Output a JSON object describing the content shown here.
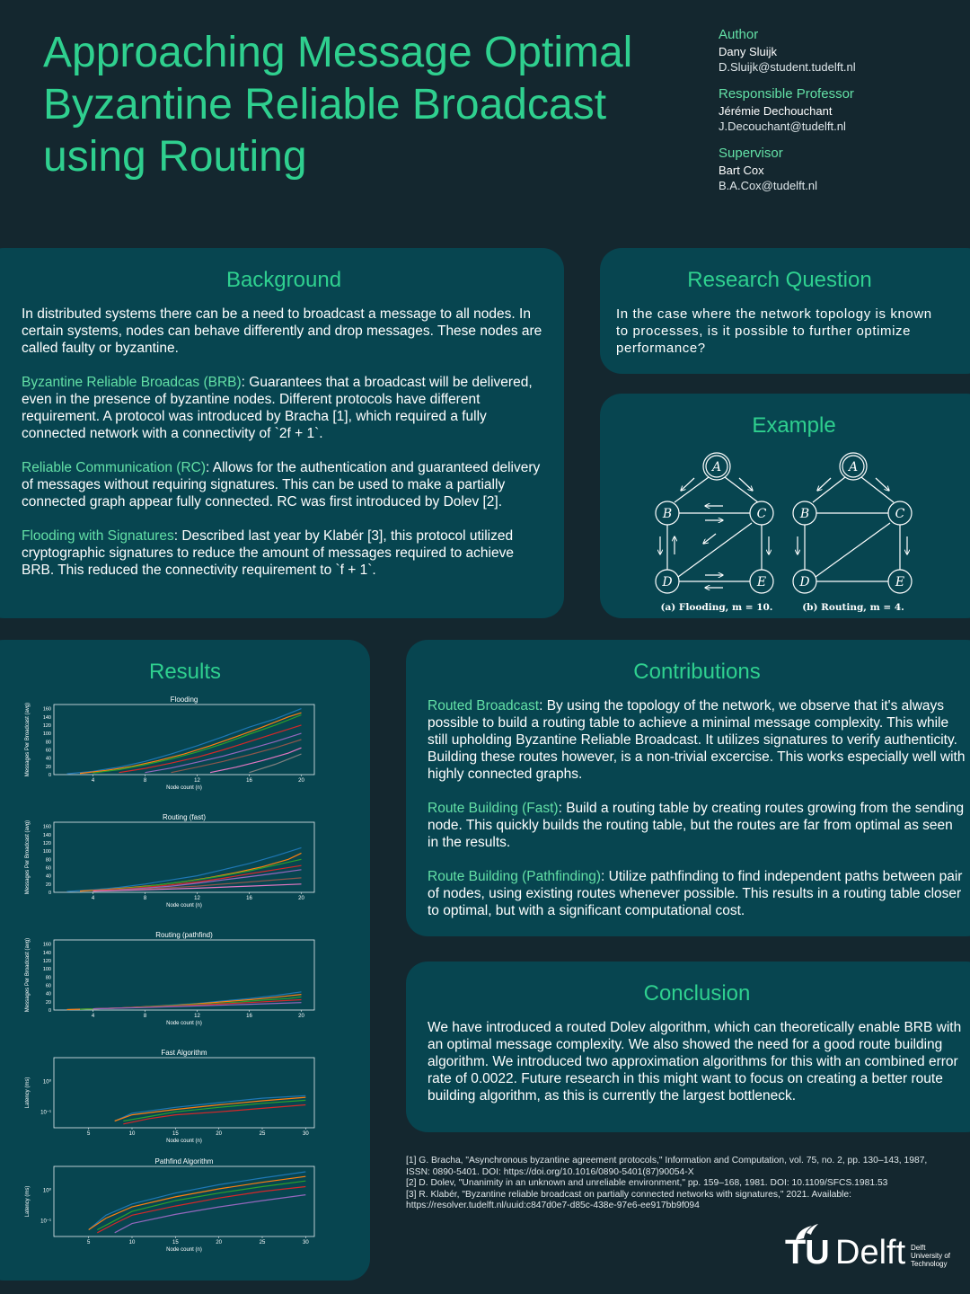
{
  "poster": {
    "title_lines": [
      "Approaching Message Optimal",
      "Byzantine Reliable Broadcast",
      "using Routing"
    ]
  },
  "credits": {
    "author_label": "Author",
    "author_name": "Dany Sluijk",
    "author_email": "D.Sluijk@student.tudelft.nl",
    "professor_label": "Responsible Professor",
    "professor_name": "Jérémie Dechouchant",
    "professor_email": "J.Decouchant@tudelft.nl",
    "supervisor_label": "Supervisor",
    "supervisor_name": "Bart Cox",
    "supervisor_email": "B.A.Cox@tudelft.nl"
  },
  "background": {
    "heading": "Background",
    "intro": "In distributed systems there can be a need to broadcast a message to all nodes. In certain systems, nodes can behave differently and drop messages. These nodes are called faulty or byzantine.",
    "brb_term": "Byzantine Reliable Broadcas (BRB)",
    "brb_text": ": Guarantees that a broadcast will be delivered, even in the presence of byzantine nodes. Different protocols have different requirement. A protocol was introduced by Bracha [1], which required a fully connected network with a connectivity of `2f + 1`.",
    "rc_term": "Reliable Communication (RC)",
    "rc_text": ": Allows for the authentication and guaranteed delivery of messages without requiring signatures. This can be used to make a partially connected graph appear fully connected. RC was first introduced by Dolev [2].",
    "fws_term": "Flooding with Signatures",
    "fws_text": ": Described last year by Klabér [3], this protocol utilized cryptographic signatures to reduce the amount of messages required to achieve BRB. This reduced the connectivity requirement to `f + 1`."
  },
  "research_question": {
    "heading": "Research Question",
    "text": "In the case where the network topology is known to processes, is it possible to further optimize performance?"
  },
  "example": {
    "heading": "Example",
    "nodes": [
      "A",
      "B",
      "C",
      "D",
      "E"
    ],
    "caption_a": "(a) Flooding, m = 10.",
    "caption_b": "(b) Routing, m = 4."
  },
  "results": {
    "heading": "Results"
  },
  "contributions": {
    "heading": "Contributions",
    "routed_term": "Routed Broadcast",
    "routed_text": ": By using the topology of the network, we observe that it's always possible to build a routing table to achieve a minimal message complexity. This while still upholding Byzantine Reliable Broadcast. It utilizes signatures to verify authenticity. Building these routes however, is a non-trivial excercise. This works especially well with highly connected graphs.",
    "fast_term": "Route Building (Fast)",
    "fast_text": ": Build a routing table by creating routes growing from the sending node. This quickly builds the routing table, but the routes are far from optimal as seen in the results.",
    "path_term": "Route Building (Pathfinding)",
    "path_text": ": Utilize pathfinding to find independent paths between pair of nodes, using existing routes whenever possible. This results in a routing table closer to optimal, but with a significant computational cost."
  },
  "conclusion": {
    "heading": "Conclusion",
    "text_before": "We have introduced a routed Dolev algorithm, which can theoretically enable BRB with an optimal message complexity. We also showed the need for a good route building algorithm. We introduced two approximation algorithms for this with an combined error rate of ",
    "error_rate": "0.0022",
    "text_after": ". Future research in this might want to focus on creating a better route building algorithm, as this is currently the largest bottleneck."
  },
  "references": [
    "[1] G. Bracha, \"Asynchronous byzantine agreement protocols,\" Information and Computation, vol. 75, no. 2, pp. 130–143, 1987, ISSN: 0890-5401. DOI: https://doi.org/10.1016/0890-5401(87)90054-X",
    "[2] D. Dolev, \"Unanimity in an unknown and unreliable environment,\" pp. 159–168, 1981. DOI: 10.1109/SFCS.1981.53",
    "[3] R. Klabér, \"Byzantine reliable broadcast on partially connected networks with signatures,\" 2021. Available: https://resolver.tudelft.nl/uuid:c847d0e7-d85c-438e-97e6-ee917bb9f094"
  ],
  "logo": {
    "tu": "TU",
    "delft": "Delft",
    "sub_lines": [
      "Delft",
      "University of",
      "Technology"
    ]
  },
  "colors": {
    "background": "#14272f",
    "panel": "#074550",
    "heading": "#2fd08f",
    "highlight": "#63e0a6"
  },
  "chart_data": [
    {
      "type": "line",
      "title": "Flooding",
      "xlabel": "Node count (n)",
      "ylabel": "Messages Per Broadcast (avg)",
      "xticks": [
        4,
        8,
        12,
        16,
        20
      ],
      "yticks": [
        0,
        20,
        40,
        60,
        80,
        100,
        120,
        140,
        160
      ],
      "xlim": [
        1,
        21
      ],
      "ylim": [
        0,
        170
      ],
      "series": [
        {
          "x": [
            2,
            4,
            6,
            8,
            10,
            12,
            14,
            16,
            18,
            20
          ],
          "values": [
            2,
            8,
            18,
            32,
            50,
            70,
            92,
            115,
            135,
            160
          ]
        },
        {
          "x": [
            3,
            5,
            7,
            9,
            11,
            13,
            15,
            17,
            19,
            20
          ],
          "values": [
            3,
            10,
            20,
            34,
            50,
            70,
            92,
            115,
            140,
            150
          ]
        },
        {
          "x": [
            4,
            6,
            8,
            10,
            12,
            14,
            16,
            18,
            20
          ],
          "values": [
            4,
            12,
            24,
            38,
            55,
            75,
            98,
            120,
            145
          ]
        },
        {
          "x": [
            6,
            8,
            10,
            12,
            14,
            16,
            18,
            20
          ],
          "values": [
            5,
            15,
            28,
            42,
            60,
            80,
            100,
            120
          ]
        },
        {
          "x": [
            8,
            10,
            12,
            14,
            16,
            18,
            20
          ],
          "values": [
            5,
            16,
            30,
            45,
            62,
            80,
            100
          ]
        },
        {
          "x": [
            10,
            12,
            14,
            16,
            18,
            20
          ],
          "values": [
            5,
            18,
            32,
            48,
            65,
            85
          ]
        },
        {
          "x": [
            13,
            15,
            17,
            19,
            20
          ],
          "values": [
            5,
            18,
            34,
            52,
            65
          ]
        },
        {
          "x": [
            16,
            18,
            20
          ],
          "values": [
            5,
            25,
            50
          ]
        }
      ]
    },
    {
      "type": "line",
      "title": "Routing (fast)",
      "xlabel": "Node count (n)",
      "ylabel": "Messages Per Broadcast (avg)",
      "xticks": [
        4,
        8,
        12,
        16,
        20
      ],
      "yticks": [
        0,
        20,
        40,
        60,
        80,
        100,
        120,
        140,
        160
      ],
      "xlim": [
        1,
        21
      ],
      "ylim": [
        0,
        170
      ],
      "series": [
        {
          "x": [
            2,
            4,
            6,
            8,
            10,
            12,
            14,
            16,
            18,
            20
          ],
          "values": [
            2,
            6,
            12,
            20,
            30,
            40,
            55,
            70,
            88,
            108
          ]
        },
        {
          "x": [
            3,
            5,
            7,
            9,
            11,
            13,
            15,
            17,
            19,
            20
          ],
          "values": [
            3,
            7,
            12,
            18,
            26,
            36,
            48,
            62,
            80,
            95
          ]
        },
        {
          "x": [
            4,
            6,
            8,
            10,
            12,
            14,
            16,
            18,
            20
          ],
          "values": [
            4,
            8,
            14,
            22,
            30,
            40,
            52,
            66,
            80
          ]
        },
        {
          "x": [
            4,
            6,
            8,
            10,
            12,
            14,
            16,
            18,
            20
          ],
          "values": [
            4,
            7,
            12,
            18,
            25,
            34,
            45,
            55,
            65
          ]
        },
        {
          "x": [
            6,
            8,
            10,
            12,
            14,
            16,
            18,
            20
          ],
          "values": [
            6,
            10,
            15,
            22,
            30,
            38,
            46,
            55
          ]
        },
        {
          "x": [
            4,
            8,
            12,
            16,
            20
          ],
          "values": [
            3,
            8,
            15,
            25,
            35
          ]
        },
        {
          "x": [
            4,
            8,
            12,
            16,
            20
          ],
          "values": [
            3,
            6,
            10,
            15,
            20
          ]
        }
      ]
    },
    {
      "type": "line",
      "title": "Routing (pathfind)",
      "xlabel": "Node count (n)",
      "ylabel": "Messages Per Broadcast (avg)",
      "xticks": [
        4,
        8,
        12,
        16,
        20
      ],
      "yticks": [
        0,
        20,
        40,
        60,
        80,
        100,
        120,
        140,
        160
      ],
      "xlim": [
        1,
        21
      ],
      "ylim": [
        0,
        170
      ],
      "series": [
        {
          "x": [
            2,
            4,
            6,
            8,
            10,
            12,
            14,
            16,
            18,
            20
          ],
          "values": [
            1,
            3,
            5,
            8,
            12,
            16,
            22,
            28,
            35,
            44
          ]
        },
        {
          "x": [
            2,
            4,
            6,
            8,
            10,
            12,
            14,
            16,
            18,
            20
          ],
          "values": [
            1,
            3,
            5,
            8,
            11,
            15,
            20,
            25,
            31,
            38
          ]
        },
        {
          "x": [
            3,
            5,
            7,
            9,
            11,
            13,
            15,
            17,
            19,
            20
          ],
          "values": [
            2,
            4,
            6,
            9,
            12,
            15,
            19,
            24,
            28,
            32
          ]
        },
        {
          "x": [
            4,
            8,
            12,
            16,
            20
          ],
          "values": [
            3,
            7,
            12,
            18,
            25
          ]
        },
        {
          "x": [
            4,
            8,
            12,
            16,
            20
          ],
          "values": [
            3,
            6,
            10,
            14,
            18
          ]
        }
      ]
    },
    {
      "type": "line",
      "title": "Fast Algorithm",
      "xlabel": "Node count (n)",
      "ylabel": "Latency (ms)",
      "xticks": [
        5,
        10,
        15,
        20,
        25,
        30
      ],
      "yticks_labels": [
        "10⁻¹",
        "10⁰"
      ],
      "xlim": [
        1,
        31
      ],
      "series": [
        {
          "x": [
            8,
            10,
            15,
            20,
            25,
            30
          ],
          "values": [
            0.05,
            0.09,
            0.14,
            0.2,
            0.28,
            0.34
          ]
        },
        {
          "x": [
            8,
            10,
            15,
            20,
            25,
            30
          ],
          "values": [
            0.05,
            0.08,
            0.12,
            0.17,
            0.23,
            0.3
          ]
        },
        {
          "x": [
            9,
            12,
            15,
            20,
            25,
            30
          ],
          "values": [
            0.05,
            0.07,
            0.1,
            0.14,
            0.19,
            0.24
          ]
        },
        {
          "x": [
            9,
            12,
            15,
            20,
            25,
            30
          ],
          "values": [
            0.04,
            0.06,
            0.08,
            0.1,
            0.13,
            0.17
          ]
        }
      ]
    },
    {
      "type": "line",
      "title": "Pathfind Algorithm",
      "xlabel": "Node count (n)",
      "ylabel": "Latency (ms)",
      "xticks": [
        5,
        10,
        15,
        20,
        25,
        30
      ],
      "yticks_labels": [
        "10⁻¹",
        "10⁰"
      ],
      "xlim": [
        1,
        31
      ],
      "series": [
        {
          "x": [
            5,
            7,
            10,
            15,
            20,
            25,
            30
          ],
          "values": [
            0.05,
            0.15,
            0.35,
            0.8,
            1.5,
            2.5,
            4.0
          ]
        },
        {
          "x": [
            5,
            7,
            10,
            15,
            20,
            25,
            30
          ],
          "values": [
            0.05,
            0.12,
            0.28,
            0.6,
            1.1,
            1.8,
            2.8
          ]
        },
        {
          "x": [
            6,
            8,
            10,
            15,
            20,
            25,
            30
          ],
          "values": [
            0.05,
            0.1,
            0.2,
            0.45,
            0.8,
            1.3,
            2.0
          ]
        },
        {
          "x": [
            6,
            8,
            10,
            15,
            20,
            25,
            30
          ],
          "values": [
            0.04,
            0.08,
            0.15,
            0.3,
            0.55,
            0.9,
            1.3
          ]
        },
        {
          "x": [
            8,
            10,
            15,
            20,
            25,
            30
          ],
          "values": [
            0.04,
            0.08,
            0.16,
            0.28,
            0.45,
            0.7
          ]
        }
      ]
    }
  ]
}
